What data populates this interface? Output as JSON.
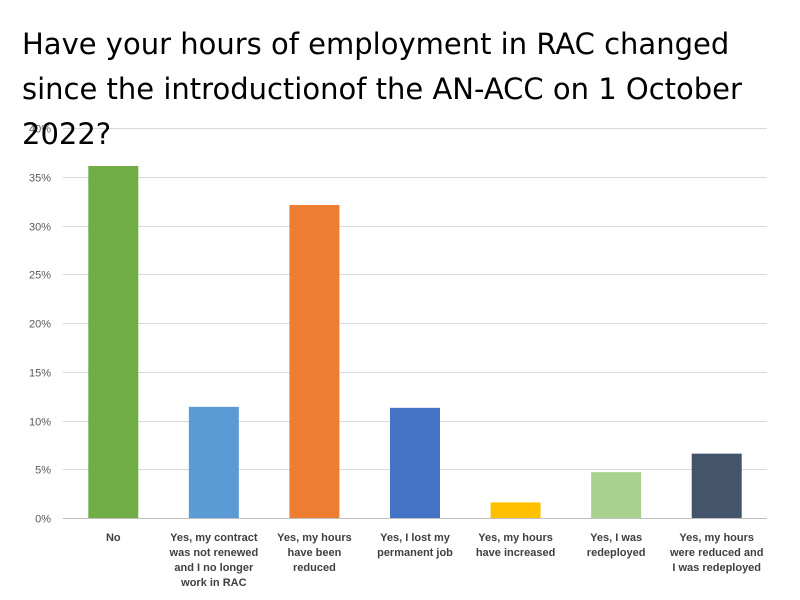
{
  "chart_data": {
    "type": "bar",
    "title": "Have your hours of employment in RAC changed since the introductionof the AN-ACC on 1 October 2022?",
    "categories": [
      [
        "No"
      ],
      [
        "Yes, my contract",
        "was not renewed",
        "and I no longer",
        "work in RAC"
      ],
      [
        "Yes, my hours",
        "have been",
        "reduced"
      ],
      [
        "Yes, I lost my",
        "permanent job"
      ],
      [
        "Yes, my hours",
        "have increased"
      ],
      [
        "Yes, I was",
        "redeployed"
      ],
      [
        "Yes, my hours",
        "were reduced and",
        "I was redeployed"
      ]
    ],
    "values": [
      36.1,
      11.4,
      32.1,
      11.3,
      1.6,
      4.7,
      6.6
    ],
    "colors": [
      "#70ad47",
      "#5b9bd5",
      "#ed7d31",
      "#4472c4",
      "#ffc000",
      "#a9d18e",
      "#44546a"
    ],
    "yticks": [
      0,
      5,
      10,
      15,
      20,
      25,
      30,
      35,
      40
    ],
    "ytick_labels": [
      "0%",
      "5%",
      "10%",
      "15%",
      "20%",
      "25%",
      "30%",
      "35%",
      "40%"
    ],
    "ylim": [
      0,
      40
    ],
    "xlabel": "",
    "ylabel": "",
    "grid": true,
    "legend": "none"
  }
}
